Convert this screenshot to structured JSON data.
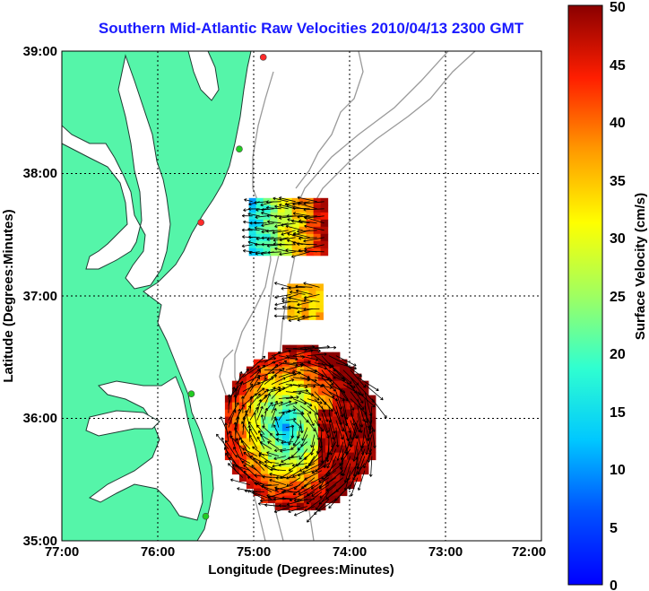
{
  "title": "Southern Mid-Atlantic Raw Velocities 2010/04/13 2300 GMT",
  "xaxis": {
    "label": "Longitude (Degrees:Minutes)",
    "ticks": [
      "77:00",
      "76:00",
      "75:00",
      "74:00",
      "73:00",
      "72:00"
    ],
    "range": [
      -77,
      -72
    ]
  },
  "yaxis": {
    "label": "Latitude (Degrees:Minutes)",
    "ticks": [
      "35:00",
      "36:00",
      "37:00",
      "38:00",
      "39:00"
    ],
    "range": [
      35,
      39
    ]
  },
  "colorbar": {
    "label": "Surface Velocity (cm/s)",
    "ticks": [
      "0",
      "5",
      "10",
      "15",
      "20",
      "25",
      "30",
      "35",
      "40",
      "45",
      "50"
    ],
    "range": [
      0,
      50
    ],
    "colormap": "jet"
  },
  "colors": {
    "land": "#55f5a9",
    "title": "#1a1aff",
    "bathymetry": "#9a9a9a",
    "grid": "#000000"
  },
  "stations": [
    {
      "lon": -74.9,
      "lat": 38.95,
      "color": "#ff2a2a"
    },
    {
      "lon": -75.15,
      "lat": 38.2,
      "color": "#22cc22"
    },
    {
      "lon": -75.55,
      "lat": 37.6,
      "color": "#ff2a2a"
    },
    {
      "lon": -75.65,
      "lat": 36.2,
      "color": "#22cc22"
    },
    {
      "lon": -75.5,
      "lat": 35.2,
      "color": "#22cc22"
    }
  ],
  "velocity_regions": [
    {
      "lon": [
        -75.05,
        -74.25
      ],
      "lat": [
        37.35,
        37.8
      ],
      "speed": "mixed"
    },
    {
      "lon": [
        -74.65,
        -74.3
      ],
      "lat": [
        36.85,
        37.1
      ],
      "speed": "moderate"
    },
    {
      "lon": [
        -75.3,
        -73.8
      ],
      "lat": [
        35.3,
        36.6
      ],
      "speed": "mixed"
    }
  ]
}
